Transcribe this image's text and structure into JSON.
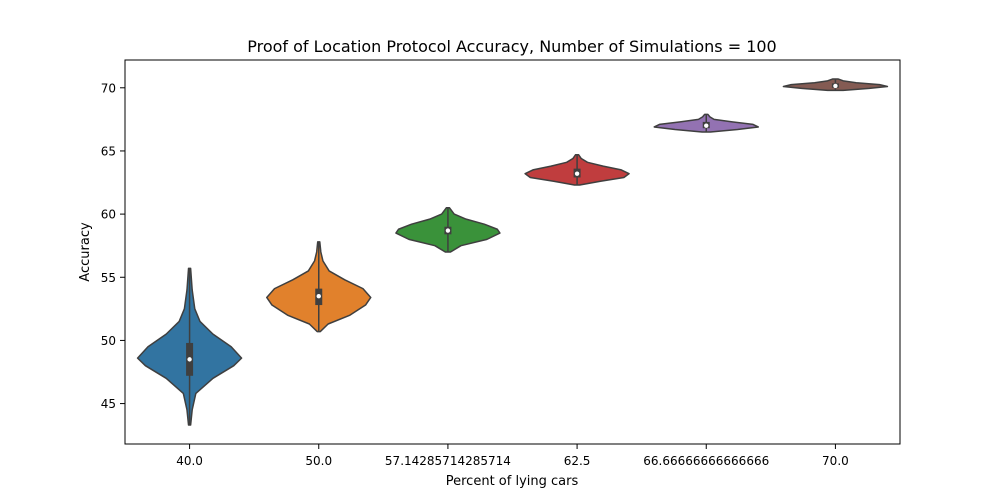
{
  "chart_data": {
    "type": "violin",
    "title": "Proof of Location Protocol Accuracy, Number of Simulations = 100",
    "xlabel": "Percent of lying cars",
    "ylabel": "Accuracy",
    "categories": [
      "40.0",
      "50.0",
      "57.14285714285714",
      "62.5",
      "66.66666666666666",
      "70.0"
    ],
    "ylim": [
      41.8,
      72.2
    ],
    "yticks": [
      "45",
      "50",
      "55",
      "60",
      "65",
      "70"
    ],
    "grid": false,
    "legend": "none",
    "colors": [
      "#3274a1",
      "#e1812c",
      "#3a923a",
      "#c03d3e",
      "#9372b2",
      "#845b53"
    ],
    "series": [
      {
        "category": "40.0",
        "min": 43.3,
        "max": 55.7,
        "median": 48.5,
        "q1": 47.2,
        "q3": 49.8,
        "profile": [
          [
            43.3,
            0.02
          ],
          [
            44.5,
            0.05
          ],
          [
            45.8,
            0.12
          ],
          [
            47.0,
            0.45
          ],
          [
            48.0,
            0.85
          ],
          [
            48.6,
            1.0
          ],
          [
            49.5,
            0.8
          ],
          [
            50.5,
            0.45
          ],
          [
            51.5,
            0.2
          ],
          [
            52.5,
            0.1
          ],
          [
            54.0,
            0.05
          ],
          [
            55.7,
            0.02
          ]
        ]
      },
      {
        "category": "50.0",
        "min": 50.7,
        "max": 57.8,
        "median": 53.5,
        "q1": 52.8,
        "q3": 54.1,
        "profile": [
          [
            50.7,
            0.03
          ],
          [
            51.3,
            0.18
          ],
          [
            52.0,
            0.6
          ],
          [
            52.8,
            0.9
          ],
          [
            53.4,
            1.0
          ],
          [
            54.1,
            0.85
          ],
          [
            54.8,
            0.5
          ],
          [
            55.5,
            0.2
          ],
          [
            56.3,
            0.08
          ],
          [
            57.0,
            0.04
          ],
          [
            57.8,
            0.02
          ]
        ]
      },
      {
        "category": "57.14285714285714",
        "min": 57.0,
        "max": 60.5,
        "median": 58.7,
        "q1": 58.4,
        "q3": 59.0,
        "profile": [
          [
            57.0,
            0.05
          ],
          [
            57.5,
            0.25
          ],
          [
            58.0,
            0.75
          ],
          [
            58.5,
            1.0
          ],
          [
            58.8,
            0.95
          ],
          [
            59.2,
            0.7
          ],
          [
            59.6,
            0.35
          ],
          [
            60.0,
            0.12
          ],
          [
            60.5,
            0.03
          ]
        ]
      },
      {
        "category": "62.5",
        "min": 62.3,
        "max": 64.7,
        "median": 63.2,
        "q1": 62.9,
        "q3": 63.6,
        "profile": [
          [
            62.3,
            0.05
          ],
          [
            62.6,
            0.45
          ],
          [
            62.9,
            0.9
          ],
          [
            63.2,
            1.0
          ],
          [
            63.5,
            0.85
          ],
          [
            63.8,
            0.5
          ],
          [
            64.1,
            0.2
          ],
          [
            64.4,
            0.08
          ],
          [
            64.7,
            0.03
          ]
        ]
      },
      {
        "category": "66.66666666666666",
        "min": 66.5,
        "max": 67.9,
        "median": 67.0,
        "q1": 66.8,
        "q3": 67.3,
        "profile": [
          [
            66.5,
            0.08
          ],
          [
            66.7,
            0.6
          ],
          [
            66.9,
            1.0
          ],
          [
            67.1,
            0.9
          ],
          [
            67.3,
            0.5
          ],
          [
            67.5,
            0.15
          ],
          [
            67.7,
            0.07
          ],
          [
            67.9,
            0.03
          ]
        ]
      },
      {
        "category": "70.0",
        "min": 69.8,
        "max": 70.7,
        "median": 70.15,
        "q1": 70.0,
        "q3": 70.35,
        "profile": [
          [
            69.8,
            0.15
          ],
          [
            69.95,
            0.65
          ],
          [
            70.1,
            1.0
          ],
          [
            70.25,
            0.85
          ],
          [
            70.4,
            0.4
          ],
          [
            70.55,
            0.15
          ],
          [
            70.7,
            0.05
          ]
        ]
      }
    ]
  }
}
